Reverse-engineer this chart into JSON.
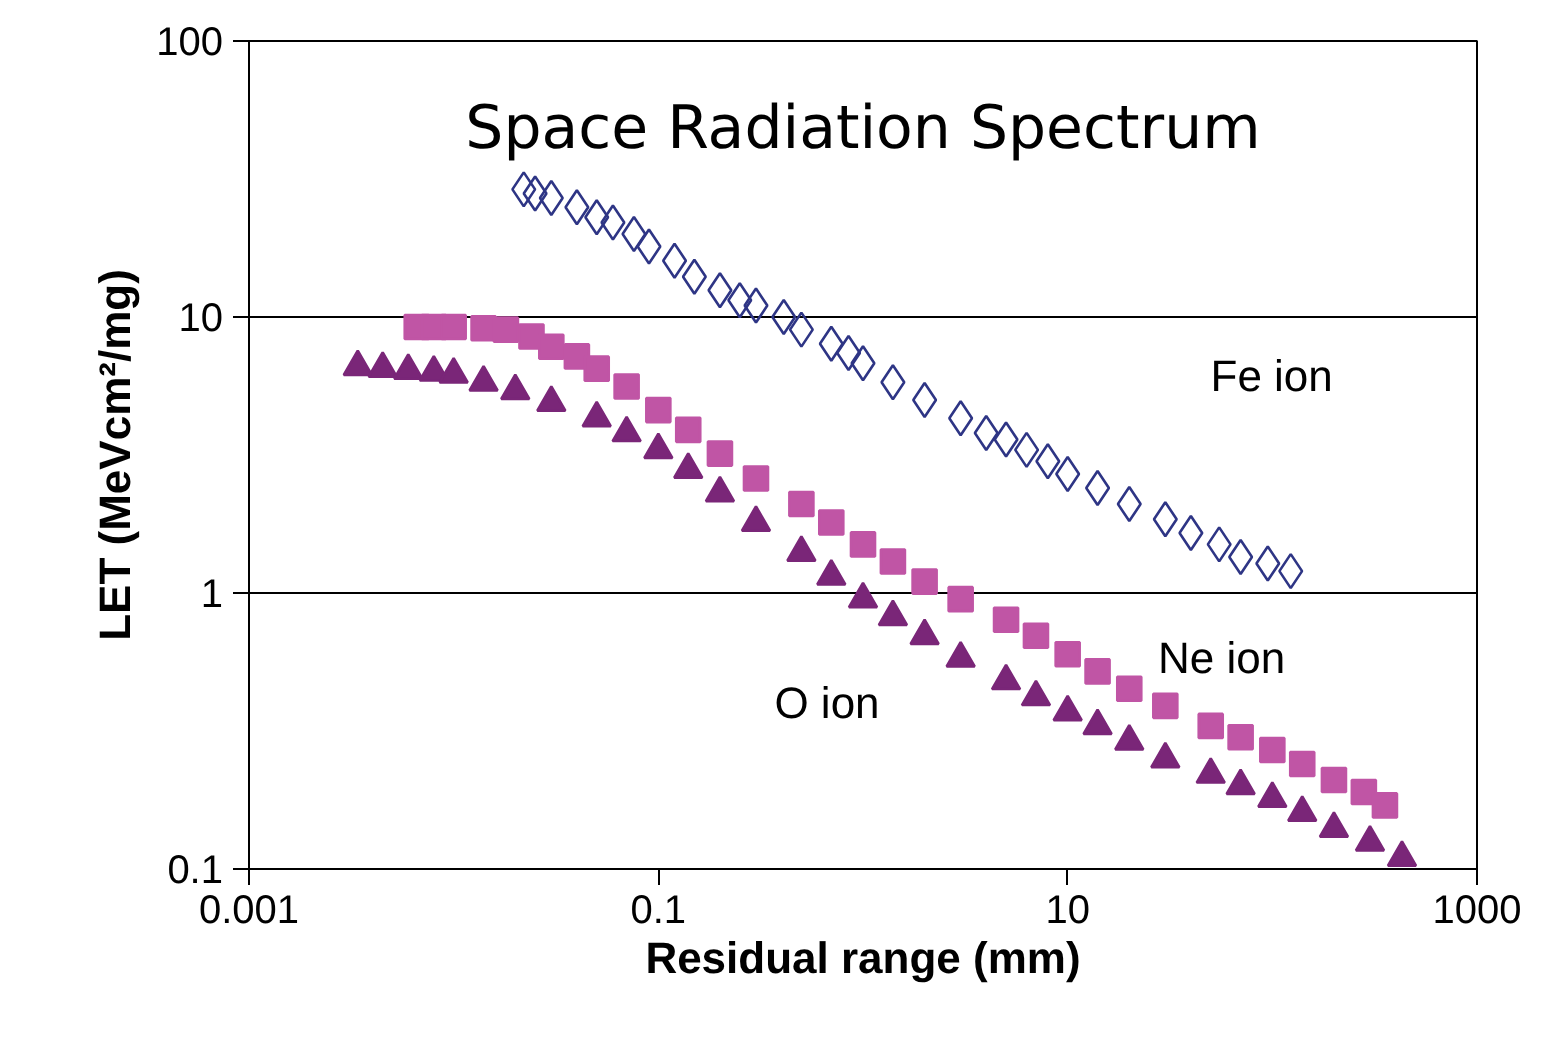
{
  "chart_data": {
    "type": "scatter",
    "title": "Space Radiation Spectrum",
    "xlabel": "Residual range (mm)",
    "ylabel": "LET (MeVcm²/mg)",
    "log": "xy",
    "xlim": [
      0.001,
      1000
    ],
    "ylim": [
      0.1,
      100
    ],
    "xticks": [
      0.001,
      0.1,
      10,
      1000
    ],
    "yticks": [
      0.1,
      1,
      10,
      100
    ],
    "grid": "y",
    "legend": false,
    "series": [
      {
        "name": "Fe ion",
        "color": "#2e3585",
        "marker": "diamond",
        "x": [
          0.022,
          0.025,
          0.03,
          0.04,
          0.05,
          0.06,
          0.076,
          0.09,
          0.12,
          0.15,
          0.2,
          0.25,
          0.3,
          0.41,
          0.5,
          0.7,
          0.85,
          1,
          1.4,
          2,
          3,
          4,
          5,
          6.3,
          8,
          10,
          14,
          20,
          30,
          40,
          55,
          70,
          95,
          123
        ],
        "values": [
          29,
          28,
          27,
          25,
          23,
          22,
          20,
          18,
          16,
          14,
          12.5,
          11.5,
          11,
          10,
          9,
          8,
          7.4,
          6.8,
          5.8,
          5,
          4.3,
          3.8,
          3.6,
          3.3,
          3,
          2.7,
          2.4,
          2.1,
          1.85,
          1.65,
          1.5,
          1.35,
          1.28,
          1.2
        ]
      },
      {
        "name": "Ne ion",
        "color": "#c055a5",
        "marker": "square",
        "x": [
          0.0066,
          0.008,
          0.01,
          0.014,
          0.018,
          0.024,
          0.03,
          0.04,
          0.05,
          0.07,
          0.1,
          0.14,
          0.2,
          0.3,
          0.5,
          0.7,
          1,
          1.4,
          2,
          3,
          5,
          7,
          10,
          14,
          20,
          30,
          50,
          70,
          100,
          140,
          200,
          280,
          355
        ],
        "values": [
          9.2,
          9.2,
          9.2,
          9.1,
          9,
          8.5,
          7.8,
          7.2,
          6.5,
          5.6,
          4.6,
          3.9,
          3.2,
          2.6,
          2.1,
          1.8,
          1.5,
          1.3,
          1.1,
          0.95,
          0.8,
          0.7,
          0.6,
          0.52,
          0.45,
          0.39,
          0.33,
          0.3,
          0.27,
          0.24,
          0.21,
          0.19,
          0.17
        ]
      },
      {
        "name": "O ion",
        "color": "#7a2678",
        "marker": "triangle",
        "x": [
          0.0034,
          0.0045,
          0.006,
          0.008,
          0.01,
          0.014,
          0.02,
          0.03,
          0.05,
          0.07,
          0.1,
          0.14,
          0.2,
          0.3,
          0.5,
          0.7,
          1,
          1.4,
          2,
          3,
          5,
          7,
          10,
          14,
          20,
          30,
          50,
          70,
          100,
          140,
          200,
          300,
          430
        ],
        "values": [
          6.6,
          6.5,
          6.4,
          6.3,
          6.2,
          5.8,
          5.4,
          4.9,
          4.3,
          3.8,
          3.3,
          2.8,
          2.3,
          1.8,
          1.4,
          1.15,
          0.95,
          0.82,
          0.7,
          0.58,
          0.48,
          0.42,
          0.37,
          0.33,
          0.29,
          0.25,
          0.22,
          0.2,
          0.18,
          0.16,
          0.14,
          0.125,
          0.11
        ]
      }
    ]
  }
}
